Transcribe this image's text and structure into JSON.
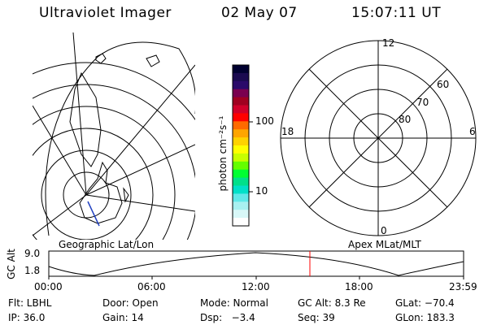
{
  "header": {
    "instrument": "Ultraviolet Imager",
    "date": "02 May 07",
    "time": "15:07:11 UT"
  },
  "colorbar": {
    "label": "photon cm⁻²s⁻¹",
    "ticks": [
      "100",
      "10"
    ],
    "colors": [
      "#000030",
      "#1a0a50",
      "#2a0a6a",
      "#7a004f",
      "#a00020",
      "#d0002a",
      "#ff0000",
      "#ff6a00",
      "#ffa500",
      "#ffd200",
      "#ffff00",
      "#c8ff00",
      "#64ff00",
      "#00ff32",
      "#00e08a",
      "#00e0c8",
      "#60e8e8",
      "#a8f0f0",
      "#d8f8f8",
      "#ffffff"
    ]
  },
  "left_map": {
    "label": "Geographic Lat/Lon"
  },
  "right_polar": {
    "label": "Apex MLat/MLT",
    "mlt_labels": {
      "top": "12",
      "bottom": "0",
      "left": "18",
      "right": "6"
    },
    "lat_labels": [
      "60",
      "70",
      "80"
    ]
  },
  "timeline": {
    "ylabel": "GC Alt",
    "y_ticks": [
      "9.0",
      "1.8"
    ],
    "x_ticks": [
      "00:00",
      "06:00",
      "12:00",
      "18:00",
      "23:59"
    ],
    "current_marker_color": "#ff0000"
  },
  "status": {
    "flt": "Flt: LBHL",
    "door": "Door: Open",
    "mode": "Mode: Normal",
    "gc_alt": "GC Alt: 8.3 Re",
    "glat": "GLat: −70.4",
    "ip": "IP: 36.0",
    "gain": "Gain: 14",
    "dsp": "Dsp:   −3.4",
    "seq": "Seq: 39",
    "glon": "GLon: 183.3"
  }
}
